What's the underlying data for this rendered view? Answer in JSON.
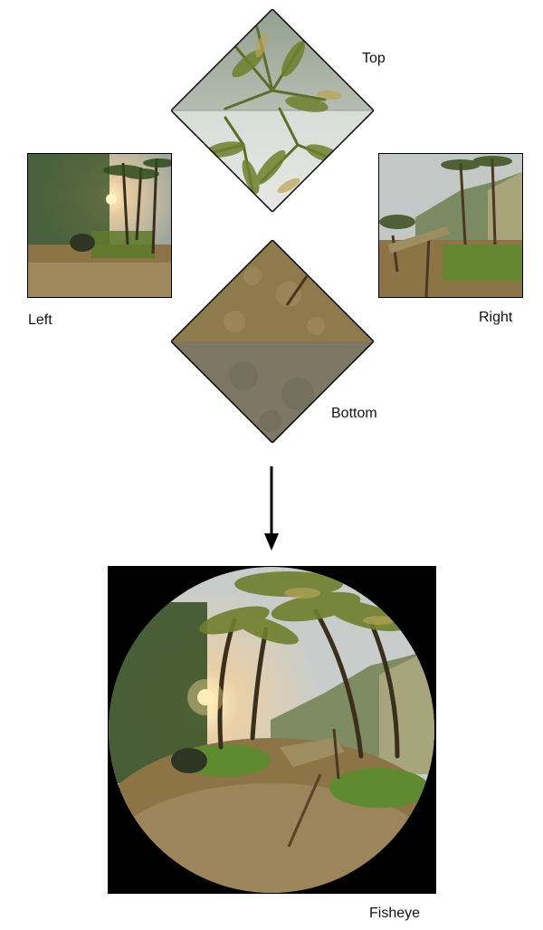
{
  "labels": {
    "top": "Top",
    "left": "Left",
    "right": "Right",
    "bottom": "Bottom",
    "fisheye": "Fisheye"
  },
  "colors": {
    "sky": "#c9cfd0",
    "foliage": "#3f5a24",
    "palm": "#6f7f2e",
    "ground": "#8c7447",
    "ground_light": "#b09a6c",
    "bottom_gray": "#7d7763",
    "sun": "#ffd98a",
    "frame": "#000000"
  },
  "icons": {
    "arrow": "down-arrow-icon"
  }
}
